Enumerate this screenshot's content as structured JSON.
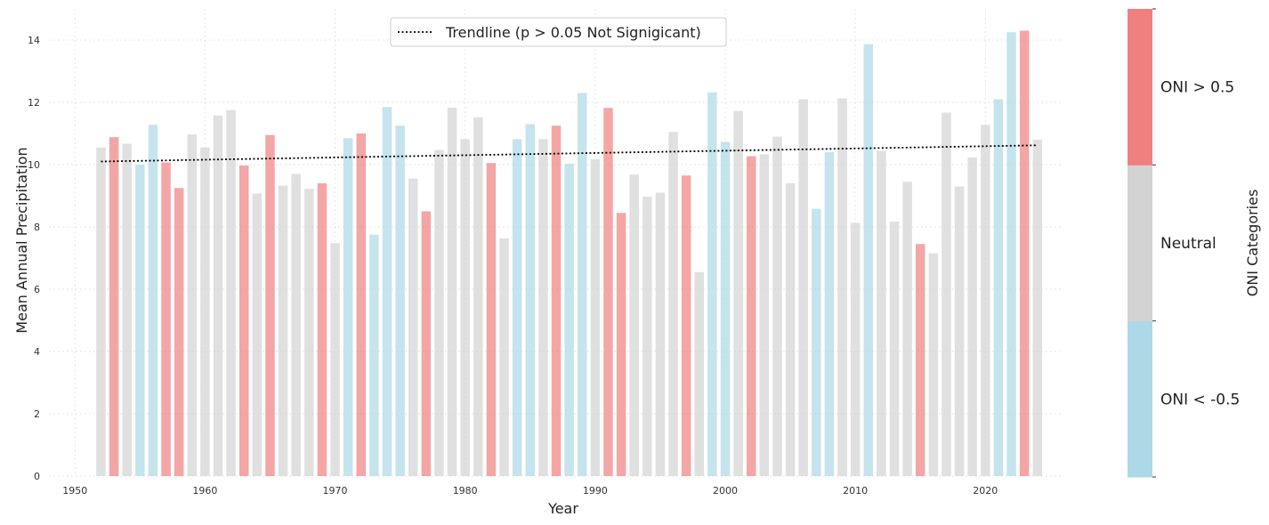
{
  "chart_data": {
    "type": "bar",
    "xlabel": "Year",
    "ylabel": "Mean Annual Precipitation",
    "xlim": [
      1948,
      2026
    ],
    "ylim": [
      0,
      15
    ],
    "xticks": [
      1950,
      1960,
      1970,
      1980,
      1990,
      2000,
      2010,
      2020
    ],
    "yticks": [
      0,
      2,
      4,
      6,
      8,
      10,
      12,
      14
    ],
    "grid": true,
    "category_colors": {
      "la_nina": "#add8e6",
      "neutral": "#d3d3d3",
      "el_nino": "#f08080"
    },
    "x": [
      1952,
      1953,
      1954,
      1955,
      1956,
      1957,
      1958,
      1959,
      1960,
      1961,
      1962,
      1963,
      1964,
      1965,
      1966,
      1967,
      1968,
      1969,
      1970,
      1971,
      1972,
      1973,
      1974,
      1975,
      1976,
      1977,
      1978,
      1979,
      1980,
      1981,
      1982,
      1983,
      1984,
      1985,
      1986,
      1987,
      1988,
      1989,
      1990,
      1991,
      1992,
      1993,
      1994,
      1995,
      1996,
      1997,
      1998,
      1999,
      2000,
      2001,
      2002,
      2003,
      2004,
      2005,
      2006,
      2007,
      2008,
      2009,
      2010,
      2011,
      2012,
      2013,
      2014,
      2015,
      2016,
      2017,
      2018,
      2019,
      2020,
      2021,
      2022,
      2023,
      2024
    ],
    "values": [
      10.55,
      10.88,
      10.67,
      10.0,
      11.28,
      10.07,
      9.25,
      10.97,
      10.55,
      11.58,
      11.75,
      9.97,
      9.07,
      10.95,
      9.33,
      9.7,
      9.22,
      9.4,
      7.48,
      10.85,
      11.0,
      7.75,
      11.85,
      11.25,
      9.55,
      8.5,
      10.47,
      11.83,
      10.82,
      11.52,
      10.05,
      7.63,
      10.82,
      11.3,
      10.82,
      11.25,
      10.03,
      12.3,
      10.18,
      11.82,
      8.45,
      9.68,
      8.97,
      9.1,
      11.05,
      9.65,
      6.55,
      12.32,
      10.73,
      11.72,
      10.27,
      10.33,
      10.9,
      9.4,
      12.1,
      8.58,
      10.4,
      12.13,
      8.13,
      13.87,
      10.45,
      8.17,
      9.45,
      7.45,
      7.15,
      11.67,
      9.3,
      10.23,
      11.28,
      12.1,
      14.25,
      14.3,
      10.8
    ],
    "categories_by_bar": [
      "neutral",
      "el_nino",
      "neutral",
      "la_nina",
      "la_nina",
      "el_nino",
      "el_nino",
      "neutral",
      "neutral",
      "neutral",
      "neutral",
      "el_nino",
      "neutral",
      "el_nino",
      "neutral",
      "neutral",
      "neutral",
      "el_nino",
      "neutral",
      "la_nina",
      "el_nino",
      "la_nina",
      "la_nina",
      "la_nina",
      "neutral",
      "el_nino",
      "neutral",
      "neutral",
      "neutral",
      "neutral",
      "el_nino",
      "neutral",
      "la_nina",
      "la_nina",
      "neutral",
      "el_nino",
      "la_nina",
      "la_nina",
      "neutral",
      "el_nino",
      "el_nino",
      "neutral",
      "neutral",
      "neutral",
      "neutral",
      "el_nino",
      "neutral",
      "la_nina",
      "la_nina",
      "neutral",
      "el_nino",
      "neutral",
      "neutral",
      "neutral",
      "neutral",
      "la_nina",
      "la_nina",
      "neutral",
      "neutral",
      "la_nina",
      "neutral",
      "neutral",
      "neutral",
      "el_nino",
      "neutral",
      "neutral",
      "neutral",
      "neutral",
      "neutral",
      "la_nina",
      "la_nina",
      "el_nino",
      "neutral"
    ],
    "trendline": {
      "x": [
        1952,
        2024
      ],
      "y": [
        10.1,
        10.62
      ],
      "style": "dotted",
      "color": "#000000"
    },
    "legend": {
      "placement": "top-center",
      "entries": [
        "Trendline (p > 0.05 Not Signigicant)"
      ]
    },
    "colorbar": {
      "title": "ONI Categories",
      "labels": [
        "ONI < -0.5",
        "Neutral",
        "ONI > 0.5"
      ],
      "colors": [
        "#add8e6",
        "#d3d3d3",
        "#f08080"
      ]
    }
  }
}
